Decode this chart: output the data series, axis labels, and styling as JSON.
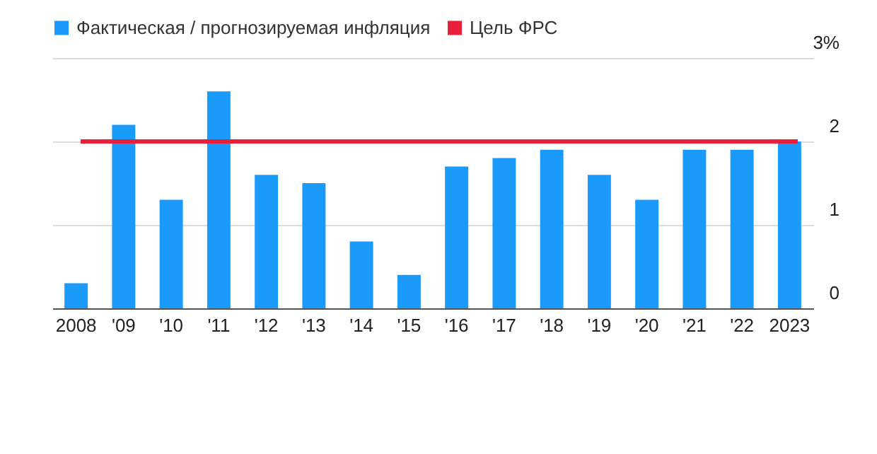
{
  "chart_data": {
    "type": "bar",
    "categories": [
      "2008",
      "'09",
      "'10",
      "'11",
      "'12",
      "'13",
      "'14",
      "'15",
      "'16",
      "'17",
      "'18",
      "'19",
      "'20",
      "'21",
      "'22",
      "2023"
    ],
    "series": [
      {
        "name": "Фактическая / прогнозируемая инфляция",
        "color": "#1a9bfc",
        "values": [
          0.3,
          2.2,
          1.3,
          2.6,
          1.6,
          1.5,
          0.8,
          0.4,
          1.7,
          1.8,
          1.9,
          1.6,
          1.3,
          1.9,
          1.9,
          2.0
        ]
      }
    ],
    "ylim": [
      0,
      3
    ],
    "yticks": [
      0,
      1,
      2,
      {
        "value": 3,
        "label": "3%"
      }
    ],
    "ref_lines": [
      {
        "axis": "y",
        "value": 2,
        "label": "Цель ФРС",
        "color": "#e8203c"
      }
    ],
    "grid": "y",
    "legend": "top left"
  }
}
